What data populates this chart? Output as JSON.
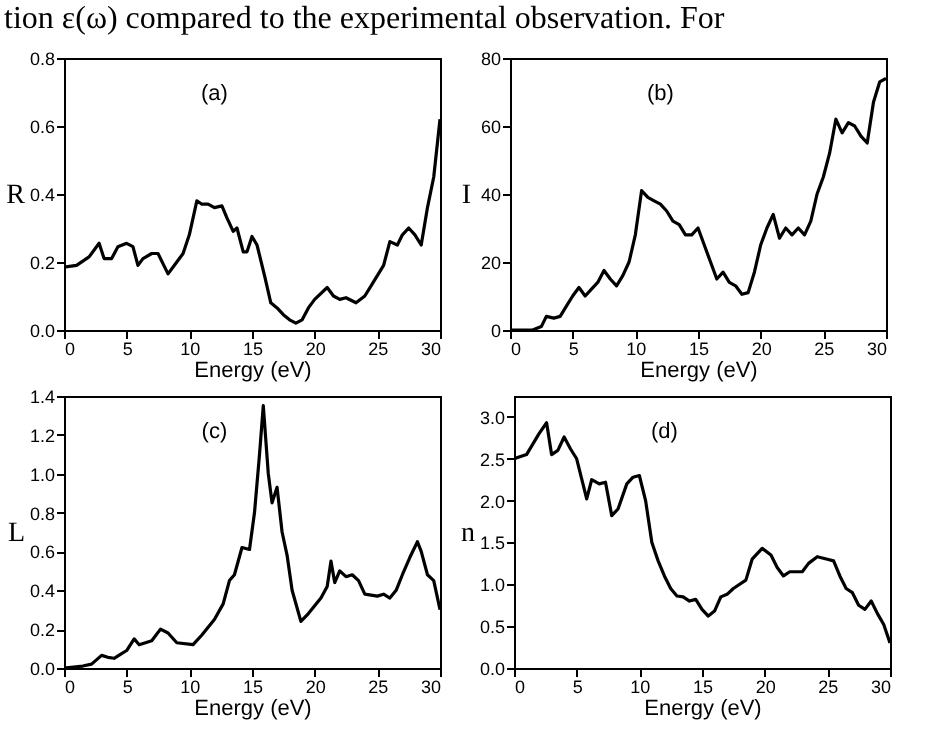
{
  "chart_data": [
    {
      "type": "line",
      "xlabel": "Energy (eV)",
      "ylabel": "R",
      "annotations": [
        "(a)",
        "tion ε(ω) compared to the experimental observation. For"
      ],
      "xlim": [
        0,
        30
      ],
      "xticks": [
        0,
        5,
        10,
        15,
        20,
        25,
        30
      ],
      "ylim": [
        0,
        0.8
      ],
      "yticks": [
        {
          "value": 0,
          "label": "0.0"
        },
        0.2,
        0.4,
        0.6,
        0.8
      ],
      "series": [
        {
          "color": "#000000",
          "x": [
            0,
            1,
            2,
            2.8,
            3.2,
            3.8,
            4.3,
            5,
            5.5,
            5.9,
            6.3,
            7,
            7.5,
            8.3,
            9,
            9.5,
            10,
            10.6,
            11,
            11.5,
            12,
            12.6,
            13,
            13.5,
            13.8,
            14.3,
            14.6,
            15,
            15.4,
            16,
            16.5,
            17,
            17.5,
            18,
            18.5,
            19,
            19.5,
            20,
            21,
            21.5,
            22,
            22.5,
            23.3,
            24,
            24.5,
            25.5,
            26,
            26.6,
            27,
            27.5,
            28,
            28.5,
            29,
            29.5,
            30
          ],
          "values": [
            0.185,
            0.19,
            0.215,
            0.255,
            0.21,
            0.21,
            0.245,
            0.255,
            0.245,
            0.19,
            0.21,
            0.225,
            0.225,
            0.165,
            0.2,
            0.225,
            0.28,
            0.38,
            0.37,
            0.37,
            0.36,
            0.365,
            0.33,
            0.29,
            0.3,
            0.23,
            0.23,
            0.275,
            0.25,
            0.16,
            0.08,
            0.065,
            0.045,
            0.03,
            0.02,
            0.03,
            0.065,
            0.09,
            0.125,
            0.1,
            0.09,
            0.095,
            0.08,
            0.1,
            0.13,
            0.19,
            0.26,
            0.25,
            0.28,
            0.3,
            0.28,
            0.25,
            0.36,
            0.45,
            0.62
          ]
        }
      ]
    },
    {
      "type": "line",
      "xlabel": "Energy (eV)",
      "ylabel": "I",
      "annotations": [
        "(b)"
      ],
      "xlim": [
        0,
        30
      ],
      "xticks": [
        0,
        5,
        10,
        15,
        20,
        25,
        30
      ],
      "ylim": [
        0,
        80
      ],
      "yticks": [
        0,
        20,
        40,
        60,
        80
      ],
      "series": [
        {
          "color": "#000000",
          "x": [
            0,
            1.8,
            2.5,
            2.9,
            3.5,
            4,
            4.5,
            5,
            5.5,
            6,
            6.5,
            7,
            7.5,
            8,
            8.5,
            9,
            9.5,
            10,
            10.5,
            11,
            11.5,
            12,
            12.5,
            13,
            13.5,
            14,
            14.5,
            15,
            15.5,
            16,
            16.5,
            17,
            17.5,
            18,
            18.5,
            19,
            19.5,
            20,
            20.5,
            21,
            21.5,
            22,
            22.5,
            23,
            23.5,
            24,
            24.5,
            25,
            25.5,
            26,
            26.5,
            27,
            27.5,
            28,
            28.5,
            29,
            29.5,
            30
          ],
          "values": [
            0,
            0,
            1,
            4,
            3.5,
            4,
            7,
            10,
            12.5,
            10,
            12,
            14,
            17.5,
            15,
            13,
            16,
            20,
            28,
            41,
            39,
            38,
            37,
            35,
            32,
            31,
            28,
            28,
            30,
            25,
            20,
            15,
            17,
            14,
            13,
            10.5,
            11,
            17,
            25,
            30,
            34,
            27,
            30,
            28,
            30,
            28,
            32,
            40,
            45,
            52,
            62,
            58,
            61,
            60,
            57,
            55,
            67,
            73,
            74
          ]
        }
      ]
    },
    {
      "type": "line",
      "xlabel": "Energy (eV)",
      "ylabel": "L",
      "annotations": [
        "(c)"
      ],
      "xlim": [
        0,
        30
      ],
      "xticks": [
        0,
        5,
        10,
        15,
        20,
        25,
        30
      ],
      "ylim": [
        0,
        1.4
      ],
      "yticks": [
        {
          "value": 0,
          "label": "0.0"
        },
        0.2,
        0.4,
        0.6,
        0.8,
        {
          "value": 1,
          "label": "1.0"
        },
        1.2,
        1.4
      ],
      "series": [
        {
          "color": "#000000",
          "x": [
            0,
            1.5,
            2.2,
            3,
            3.5,
            4,
            4.5,
            5,
            5.6,
            6,
            7,
            7.7,
            8.3,
            9,
            10.3,
            11,
            12,
            12.7,
            13.2,
            13.6,
            14.2,
            14.8,
            15.2,
            15.6,
            15.9,
            16.3,
            16.6,
            17,
            17.4,
            17.8,
            18.2,
            18.9,
            19.5,
            20.5,
            21,
            21.3,
            21.6,
            22,
            22.5,
            23,
            23.5,
            24,
            25,
            25.5,
            26,
            26.5,
            27,
            27.6,
            28.2,
            28.5,
            29,
            29.5,
            30
          ],
          "values": [
            0,
            0.01,
            0.02,
            0.065,
            0.055,
            0.05,
            0.07,
            0.09,
            0.15,
            0.12,
            0.14,
            0.2,
            0.18,
            0.13,
            0.12,
            0.17,
            0.25,
            0.33,
            0.45,
            0.48,
            0.62,
            0.61,
            0.8,
            1.1,
            1.35,
            1.0,
            0.85,
            0.93,
            0.7,
            0.58,
            0.4,
            0.24,
            0.28,
            0.36,
            0.42,
            0.55,
            0.44,
            0.5,
            0.47,
            0.48,
            0.45,
            0.38,
            0.37,
            0.38,
            0.36,
            0.4,
            0.48,
            0.57,
            0.65,
            0.6,
            0.48,
            0.45,
            0.3
          ]
        }
      ]
    },
    {
      "type": "line",
      "xlabel": "Energy (eV)",
      "ylabel": "n",
      "annotations": [
        "(d)"
      ],
      "xlim": [
        0,
        30
      ],
      "xticks": [
        0,
        5,
        10,
        15,
        20,
        25,
        30
      ],
      "ylim": [
        0,
        3.25
      ],
      "yticks": [
        {
          "value": 0,
          "label": "0.0"
        },
        0.5,
        {
          "value": 1,
          "label": "1.0"
        },
        1.5,
        {
          "value": 2,
          "label": "2.0"
        },
        2.5,
        {
          "value": 3,
          "label": "3.0"
        }
      ],
      "series": [
        {
          "color": "#000000",
          "x": [
            0,
            1,
            2,
            2.6,
            3,
            3.5,
            4,
            4.5,
            5,
            5.5,
            5.8,
            6.2,
            6.8,
            7.3,
            7.8,
            8.3,
            9,
            9.5,
            10,
            10.5,
            11,
            11.5,
            12,
            12.5,
            13,
            13.5,
            14,
            14.5,
            15,
            15.5,
            16,
            16.5,
            17,
            17.5,
            18.5,
            19,
            19.8,
            20.5,
            21,
            21.5,
            22,
            23,
            23.5,
            24.2,
            25,
            25.5,
            26,
            26.5,
            27,
            27.5,
            28,
            28.5,
            29,
            29.5,
            30
          ],
          "values": [
            2.5,
            2.55,
            2.8,
            2.93,
            2.55,
            2.6,
            2.76,
            2.62,
            2.5,
            2.2,
            2.02,
            2.25,
            2.2,
            2.22,
            1.82,
            1.9,
            2.2,
            2.28,
            2.3,
            2.0,
            1.5,
            1.28,
            1.1,
            0.95,
            0.86,
            0.85,
            0.8,
            0.82,
            0.7,
            0.62,
            0.68,
            0.85,
            0.88,
            0.95,
            1.05,
            1.3,
            1.43,
            1.35,
            1.2,
            1.1,
            1.15,
            1.15,
            1.25,
            1.33,
            1.3,
            1.28,
            1.1,
            0.95,
            0.9,
            0.75,
            0.7,
            0.8,
            0.65,
            0.52,
            0.3
          ]
        }
      ]
    }
  ]
}
